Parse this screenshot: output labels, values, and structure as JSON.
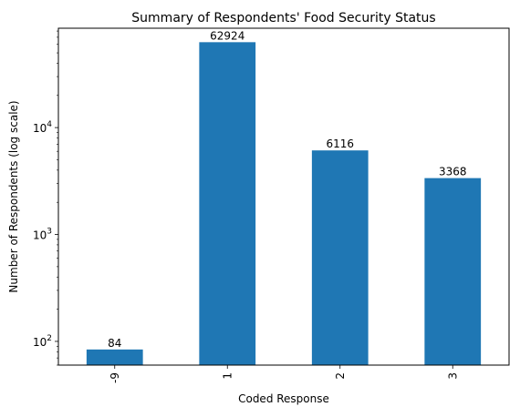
{
  "chart_data": {
    "type": "bar",
    "title": "Summary of Respondents' Food Security Status",
    "xlabel": "Coded Response",
    "ylabel": "Number of Respondents (log scale)",
    "yscale": "log",
    "ylim": [
      60,
      85000
    ],
    "grid": false,
    "legend": "none",
    "categories": [
      "-9",
      "1",
      "2",
      "3"
    ],
    "values": [
      84,
      62924,
      6116,
      3368
    ],
    "data_labels": [
      "84",
      "62924",
      "6116",
      "3368"
    ],
    "bar_color": "#1f77b4",
    "ytick_bases": [
      100,
      1000,
      10000
    ],
    "ytick_labels": [
      {
        "base": "10",
        "exp": "2"
      },
      {
        "base": "10",
        "exp": "3"
      },
      {
        "base": "10",
        "exp": "4"
      }
    ]
  }
}
